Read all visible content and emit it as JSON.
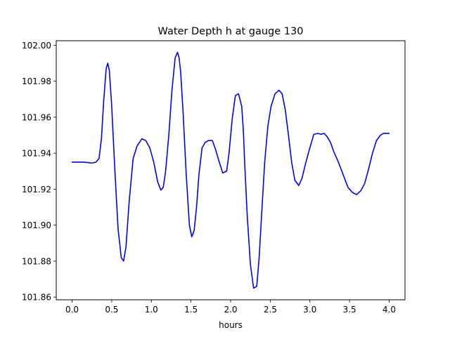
{
  "chart_data": {
    "type": "line",
    "title": "Water Depth h at gauge 130",
    "xlabel": "hours",
    "ylabel": "",
    "xlim": [
      -0.2,
      4.2
    ],
    "ylim": [
      101.8585,
      102.0025
    ],
    "grid": false,
    "legend": "none",
    "x_ticks": [
      {
        "value": 0.0,
        "label": "0.0"
      },
      {
        "value": 0.5,
        "label": "0.5"
      },
      {
        "value": 1.0,
        "label": "1.0"
      },
      {
        "value": 1.5,
        "label": "1.5"
      },
      {
        "value": 2.0,
        "label": "2.0"
      },
      {
        "value": 2.5,
        "label": "2.5"
      },
      {
        "value": 3.0,
        "label": "3.0"
      },
      {
        "value": 3.5,
        "label": "3.5"
      },
      {
        "value": 4.0,
        "label": "4.0"
      }
    ],
    "y_ticks": [
      {
        "value": 101.86,
        "label": "101.86"
      },
      {
        "value": 101.88,
        "label": "101.88"
      },
      {
        "value": 101.9,
        "label": "101.90"
      },
      {
        "value": 101.92,
        "label": "101.92"
      },
      {
        "value": 101.94,
        "label": "101.94"
      },
      {
        "value": 101.96,
        "label": "101.96"
      },
      {
        "value": 101.98,
        "label": "101.98"
      },
      {
        "value": 102.0,
        "label": "102.00"
      }
    ],
    "series": [
      {
        "color": "#0000ff",
        "x": [
          0.0,
          0.15,
          0.25,
          0.3,
          0.34,
          0.37,
          0.4,
          0.43,
          0.45,
          0.47,
          0.5,
          0.54,
          0.58,
          0.62,
          0.65,
          0.68,
          0.72,
          0.77,
          0.82,
          0.88,
          0.93,
          0.98,
          1.03,
          1.08,
          1.12,
          1.15,
          1.18,
          1.22,
          1.26,
          1.3,
          1.33,
          1.35,
          1.37,
          1.4,
          1.44,
          1.48,
          1.51,
          1.54,
          1.57,
          1.6,
          1.64,
          1.68,
          1.72,
          1.77,
          1.81,
          1.85,
          1.9,
          1.95,
          1.98,
          2.02,
          2.06,
          2.1,
          2.14,
          2.16,
          2.18,
          2.21,
          2.25,
          2.29,
          2.33,
          2.36,
          2.39,
          2.43,
          2.47,
          2.51,
          2.56,
          2.61,
          2.65,
          2.69,
          2.73,
          2.77,
          2.81,
          2.86,
          2.9,
          2.95,
          3.0,
          3.05,
          3.1,
          3.14,
          3.18,
          3.22,
          3.26,
          3.3,
          3.36,
          3.42,
          3.48,
          3.54,
          3.59,
          3.64,
          3.69,
          3.74,
          3.79,
          3.84,
          3.89,
          3.93,
          3.97,
          4.0
        ],
        "y": [
          101.935,
          101.935,
          101.9345,
          101.935,
          101.937,
          101.948,
          101.97,
          101.987,
          101.99,
          101.986,
          101.966,
          101.93,
          101.898,
          101.882,
          101.88,
          101.888,
          101.913,
          101.937,
          101.944,
          101.948,
          101.947,
          101.943,
          101.935,
          101.924,
          101.9195,
          101.921,
          101.93,
          101.95,
          101.975,
          101.993,
          101.996,
          101.993,
          101.985,
          101.963,
          101.928,
          101.9,
          101.8935,
          101.897,
          101.91,
          101.928,
          101.943,
          101.946,
          101.947,
          101.947,
          101.942,
          101.936,
          101.929,
          101.93,
          101.94,
          101.959,
          101.972,
          101.973,
          101.966,
          101.953,
          101.932,
          101.905,
          101.878,
          101.865,
          101.866,
          101.882,
          101.905,
          101.935,
          101.955,
          101.966,
          101.973,
          101.975,
          101.973,
          101.964,
          101.95,
          101.935,
          101.925,
          101.922,
          101.926,
          101.935,
          101.943,
          101.9505,
          101.951,
          101.9505,
          101.951,
          101.949,
          101.946,
          101.941,
          101.935,
          101.928,
          101.921,
          101.918,
          101.917,
          101.919,
          101.923,
          101.931,
          101.94,
          101.947,
          101.95,
          101.951,
          101.951,
          101.951
        ]
      }
    ]
  }
}
